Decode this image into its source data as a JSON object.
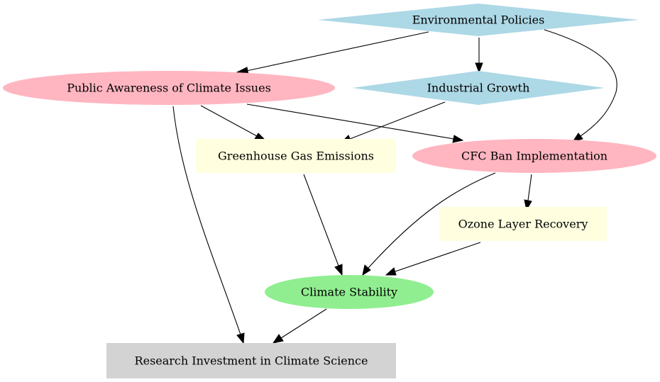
{
  "nodes": {
    "environmental_policies": {
      "label": "Environmental Policies",
      "shape": "diamond",
      "color": "#add8e6"
    },
    "public_awareness": {
      "label": "Public Awareness of Climate Issues",
      "shape": "ellipse",
      "color": "#ffb6c1"
    },
    "industrial_growth": {
      "label": "Industrial Growth",
      "shape": "diamond",
      "color": "#add8e6"
    },
    "greenhouse_gas": {
      "label": "Greenhouse Gas Emissions",
      "shape": "box",
      "color": "#ffffe0"
    },
    "cfc_ban": {
      "label": "CFC Ban Implementation",
      "shape": "ellipse",
      "color": "#ffb6c1"
    },
    "ozone_recovery": {
      "label": "Ozone Layer Recovery",
      "shape": "box",
      "color": "#ffffe0"
    },
    "climate_stability": {
      "label": "Climate Stability",
      "shape": "ellipse",
      "color": "#90ee90"
    },
    "research_investment": {
      "label": "Research Investment in Climate Science",
      "shape": "box",
      "color": "#d3d3d3"
    }
  },
  "edges": [
    {
      "from": "environmental_policies",
      "to": "public_awareness"
    },
    {
      "from": "environmental_policies",
      "to": "industrial_growth"
    },
    {
      "from": "environmental_policies",
      "to": "cfc_ban"
    },
    {
      "from": "public_awareness",
      "to": "greenhouse_gas"
    },
    {
      "from": "public_awareness",
      "to": "cfc_ban"
    },
    {
      "from": "public_awareness",
      "to": "research_investment"
    },
    {
      "from": "industrial_growth",
      "to": "greenhouse_gas"
    },
    {
      "from": "greenhouse_gas",
      "to": "climate_stability"
    },
    {
      "from": "cfc_ban",
      "to": "climate_stability"
    },
    {
      "from": "cfc_ban",
      "to": "ozone_recovery"
    },
    {
      "from": "ozone_recovery",
      "to": "climate_stability"
    },
    {
      "from": "climate_stability",
      "to": "research_investment"
    }
  ]
}
